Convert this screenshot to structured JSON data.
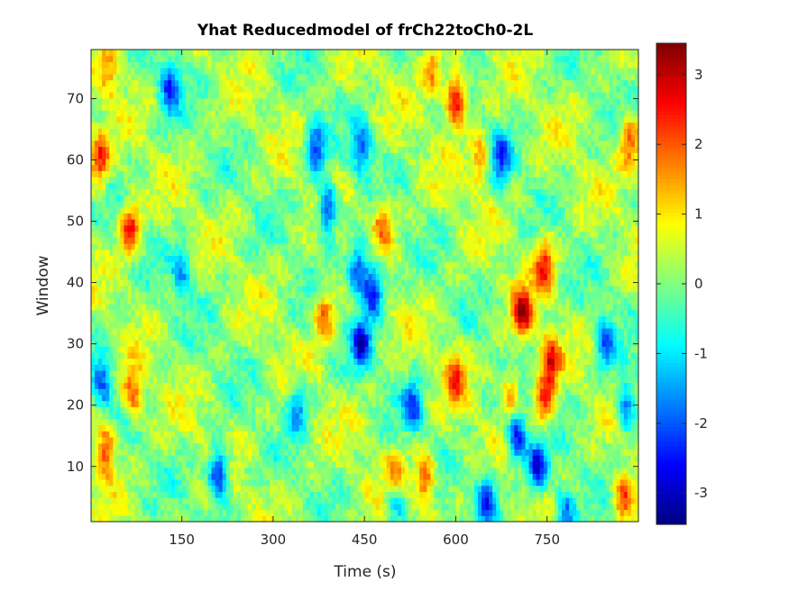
{
  "chart_data": {
    "type": "heatmap",
    "title": "Yhat Reducedmodel of frCh22toCh0-2L",
    "xlabel": "Time (s)",
    "ylabel": "Window",
    "xlim": [
      1,
      900
    ],
    "ylim": [
      1,
      78
    ],
    "xticks": [
      150,
      300,
      450,
      600,
      750
    ],
    "xtick_labels": [
      "150",
      "300",
      "450",
      "600",
      "750"
    ],
    "yticks": [
      10,
      20,
      30,
      40,
      50,
      60,
      70
    ],
    "ytick_labels": [
      "10",
      "20",
      "30",
      "40",
      "50",
      "60",
      "70"
    ],
    "colorbar": {
      "colormap": "jet",
      "clim": [
        -3.45,
        3.45
      ],
      "ticks": [
        -3,
        -2,
        -1,
        0,
        1,
        2,
        3
      ],
      "tick_labels": [
        "-3",
        "-2",
        "-1",
        "0",
        "1",
        "2",
        "3"
      ]
    },
    "grid": "off",
    "features": [
      {
        "time": 600,
        "window": 70,
        "value": 3.0
      },
      {
        "time": 560,
        "window": 75,
        "value": 1.5
      },
      {
        "time": 65,
        "window": 49,
        "value": 2.5
      },
      {
        "time": 15,
        "window": 60,
        "value": 2.3
      },
      {
        "time": 25,
        "window": 13,
        "value": 2.2
      },
      {
        "time": 70,
        "window": 22,
        "value": 2.0
      },
      {
        "time": 30,
        "window": 75,
        "value": 1.5
      },
      {
        "time": 745,
        "window": 43,
        "value": 2.2
      },
      {
        "time": 710,
        "window": 35,
        "value": 2.7
      },
      {
        "time": 755,
        "window": 27,
        "value": 2.5
      },
      {
        "time": 745,
        "window": 20,
        "value": 2.0
      },
      {
        "time": 690,
        "window": 22,
        "value": 1.6
      },
      {
        "time": 500,
        "window": 8,
        "value": 2.0
      },
      {
        "time": 550,
        "window": 8,
        "value": 2.2
      },
      {
        "time": 480,
        "window": 50,
        "value": 1.8
      },
      {
        "time": 385,
        "window": 35,
        "value": 1.8
      },
      {
        "time": 885,
        "window": 63,
        "value": 2.0
      },
      {
        "time": 875,
        "window": 5,
        "value": 2.0
      },
      {
        "time": 600,
        "window": 25,
        "value": 1.8
      },
      {
        "time": 640,
        "window": 60,
        "value": 1.5
      },
      {
        "time": 465,
        "window": 39,
        "value": -3.0
      },
      {
        "time": 440,
        "window": 42,
        "value": -2.6
      },
      {
        "time": 445,
        "window": 30,
        "value": -2.5
      },
      {
        "time": 390,
        "window": 52,
        "value": -2.8
      },
      {
        "time": 370,
        "window": 62,
        "value": -2.3
      },
      {
        "time": 210,
        "window": 9,
        "value": -3.0
      },
      {
        "time": 130,
        "window": 72,
        "value": -2.2
      },
      {
        "time": 20,
        "window": 24,
        "value": -2.0
      },
      {
        "time": 700,
        "window": 15,
        "value": -2.8
      },
      {
        "time": 735,
        "window": 10,
        "value": -2.8
      },
      {
        "time": 675,
        "window": 60,
        "value": -2.0
      },
      {
        "time": 650,
        "window": 5,
        "value": -2.4
      },
      {
        "time": 530,
        "window": 20,
        "value": -2.0
      },
      {
        "time": 880,
        "window": 20,
        "value": -2.3
      },
      {
        "time": 845,
        "window": 30,
        "value": -2.0
      },
      {
        "time": 445,
        "window": 62,
        "value": -2.0
      },
      {
        "time": 340,
        "window": 20,
        "value": -1.8
      },
      {
        "time": 500,
        "window": 5,
        "value": -2.2
      },
      {
        "time": 150,
        "window": 42,
        "value": -1.6
      },
      {
        "time": 780,
        "window": 2,
        "value": -2.0
      }
    ]
  }
}
